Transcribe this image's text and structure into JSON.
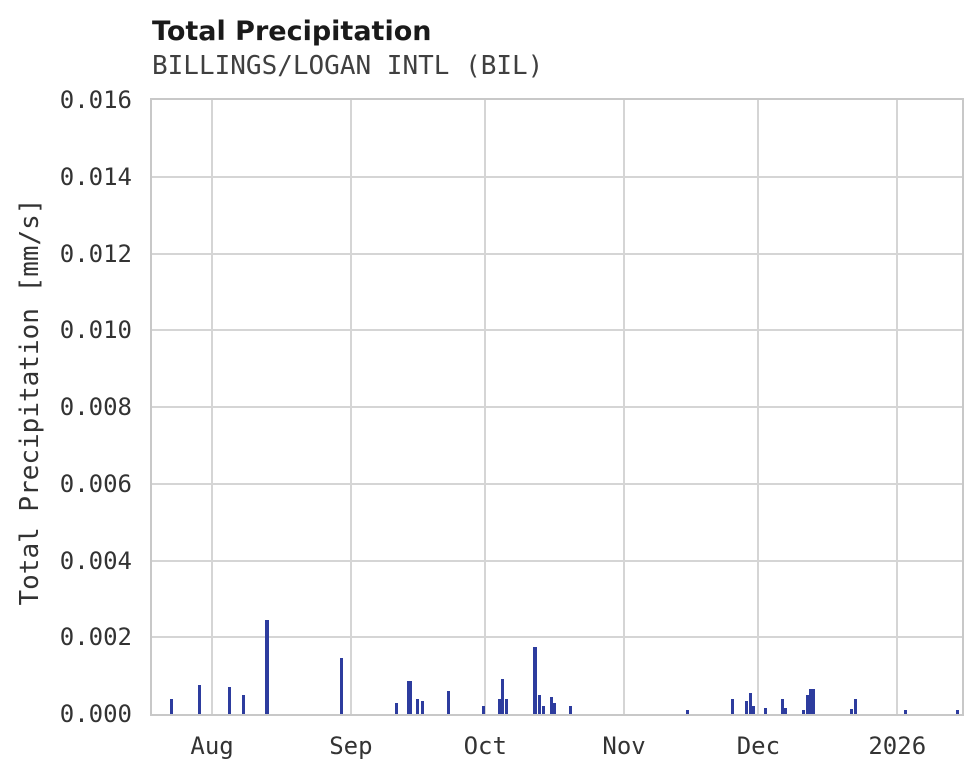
{
  "header": {
    "title": "Total Precipitation",
    "subtitle": "BILLINGS/LOGAN INTL (BIL)"
  },
  "colors": {
    "bar": "#2d3c9e",
    "grid": "#d5d5d5",
    "spine": "#c8c8c8",
    "title": "#1a1a1a",
    "subtitle": "#404040",
    "tick_label": "#333333",
    "background": "#ffffff"
  },
  "chart_data": {
    "type": "bar",
    "title": "Total Precipitation",
    "subtitle": "BILLINGS/LOGAN INTL (BIL)",
    "xlabel": "",
    "ylabel": "Total Precipitation [mm/s]",
    "ylim": [
      0,
      0.016
    ],
    "ytick_values": [
      0,
      0.002,
      0.004,
      0.006,
      0.008,
      0.01,
      0.012,
      0.014,
      0.016
    ],
    "ytick_labels": [
      "0.000",
      "0.002",
      "0.004",
      "0.006",
      "0.008",
      "0.010",
      "0.012",
      "0.014",
      "0.016"
    ],
    "grid": true,
    "legend": false,
    "x_domain": [
      "2025-07-18T14:00:00Z",
      "2026-01-15T11:00:00Z"
    ],
    "x_ticks": [
      {
        "date": "2025-08-01T00:00:00Z",
        "label": "Aug"
      },
      {
        "date": "2025-09-01T00:00:00Z",
        "label": "Sep"
      },
      {
        "date": "2025-10-01T00:00:00Z",
        "label": "Oct"
      },
      {
        "date": "2025-11-01T00:00:00Z",
        "label": "Nov"
      },
      {
        "date": "2025-12-01T00:00:00Z",
        "label": "Dec"
      },
      {
        "date": "2026-01-01T00:00:00Z",
        "label": "2026"
      }
    ],
    "series": [
      {
        "name": "Total Precipitation",
        "unit": "mm/s",
        "points": [
          {
            "t": "2025-07-23T01:00:00Z",
            "v": 0.0004
          },
          {
            "t": "2025-07-29T04:00:00Z",
            "v": 0.00075
          },
          {
            "t": "2025-08-04T21:00:00Z",
            "v": 0.0007
          },
          {
            "t": "2025-08-08T00:00:00Z",
            "v": 0.0005
          },
          {
            "t": "2025-08-13T05:00:00Z",
            "v": 0.00245,
            "w": 4
          },
          {
            "t": "2025-08-29T20:00:00Z",
            "v": 0.00145
          },
          {
            "t": "2025-09-11T06:00:00Z",
            "v": 0.0003
          },
          {
            "t": "2025-09-14T01:00:00Z",
            "v": 0.00085,
            "w": 5
          },
          {
            "t": "2025-09-15T23:00:00Z",
            "v": 0.0004
          },
          {
            "t": "2025-09-17T02:00:00Z",
            "v": 0.00035
          },
          {
            "t": "2025-09-22T18:00:00Z",
            "v": 0.0006
          },
          {
            "t": "2025-09-30T15:00:00Z",
            "v": 0.0002
          },
          {
            "t": "2025-10-04T05:00:00Z",
            "v": 0.0004
          },
          {
            "t": "2025-10-04T23:00:00Z",
            "v": 0.0009
          },
          {
            "t": "2025-10-05T19:00:00Z",
            "v": 0.0004
          },
          {
            "t": "2025-10-12T05:00:00Z",
            "v": 0.00175,
            "w": 4
          },
          {
            "t": "2025-10-13T01:00:00Z",
            "v": 0.0005
          },
          {
            "t": "2025-10-14T01:00:00Z",
            "v": 0.0002
          },
          {
            "t": "2025-10-15T18:00:00Z",
            "v": 0.00045
          },
          {
            "t": "2025-10-16T12:00:00Z",
            "v": 0.0003
          },
          {
            "t": "2025-10-20T02:00:00Z",
            "v": 0.0002
          },
          {
            "t": "2025-11-15T04:00:00Z",
            "v": 0.0001
          },
          {
            "t": "2025-11-25T03:00:00Z",
            "v": 0.0004
          },
          {
            "t": "2025-11-28T10:00:00Z",
            "v": 0.00035
          },
          {
            "t": "2025-11-29T04:00:00Z",
            "v": 0.00055
          },
          {
            "t": "2025-11-29T21:00:00Z",
            "v": 0.0002
          },
          {
            "t": "2025-12-02T16:00:00Z",
            "v": 0.00015
          },
          {
            "t": "2025-12-06T11:00:00Z",
            "v": 0.0004
          },
          {
            "t": "2025-12-07T03:00:00Z",
            "v": 0.00015
          },
          {
            "t": "2025-12-11T04:00:00Z",
            "v": 0.0001
          },
          {
            "t": "2025-12-12T00:00:00Z",
            "v": 0.0005
          },
          {
            "t": "2025-12-12T17:00:00Z",
            "v": 0.00065
          },
          {
            "t": "2025-12-13T09:00:00Z",
            "v": 0.00065
          },
          {
            "t": "2025-12-21T21:00:00Z",
            "v": 0.00013
          },
          {
            "t": "2025-12-22T15:00:00Z",
            "v": 0.0004
          },
          {
            "t": "2026-01-02T21:00:00Z",
            "v": 0.0001
          },
          {
            "t": "2026-01-14T12:00:00Z",
            "v": 0.0001
          }
        ]
      }
    ]
  }
}
